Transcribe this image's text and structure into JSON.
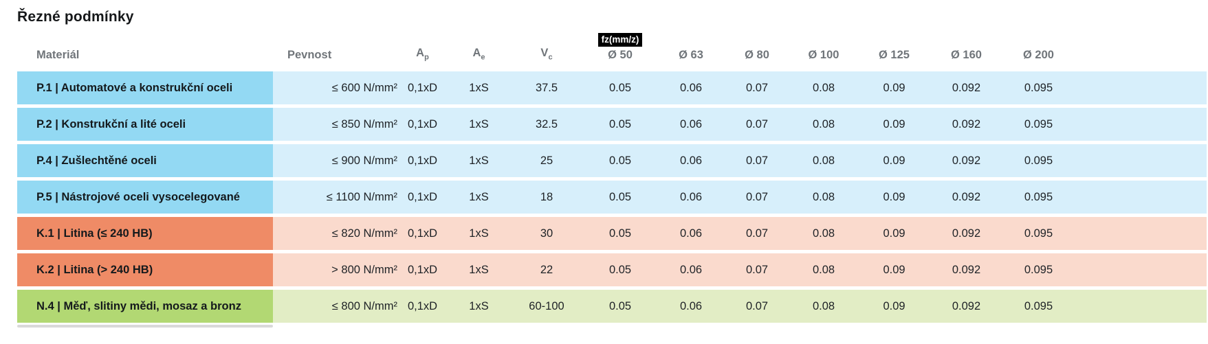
{
  "page": {
    "title": "Řezné podmínky"
  },
  "colors": {
    "title_text": "#16181a",
    "header_text": "#70757a",
    "cell_text": "#1e2226",
    "badge_bg": "#000000",
    "badge_text": "#ffffff",
    "scrollbar_thumb": "#d9d9d9",
    "blue_dark": "#93d9f3",
    "blue_light": "#d7effb",
    "salmon_dark": "#ef8b66",
    "salmon_light": "#fadacd",
    "green_dark": "#b2d873",
    "green_light": "#e2edc5"
  },
  "chart_data": {
    "type": "table",
    "title": "Řezné podmínky",
    "headers": {
      "material": "Materiál",
      "pevnost": "Pevnost",
      "ap": {
        "base": "A",
        "sub": "p"
      },
      "ae": {
        "base": "A",
        "sub": "e"
      },
      "vc": {
        "base": "V",
        "sub": "c"
      },
      "fz_badge": "fz(mm/z)",
      "diameters": [
        "Ø 50",
        "Ø 63",
        "Ø 80",
        "Ø 100",
        "Ø 125",
        "Ø 160",
        "Ø 200"
      ]
    },
    "palette": {
      "blue": {
        "dark": "#93d9f3",
        "light": "#d7effb"
      },
      "salmon": {
        "dark": "#ef8b66",
        "light": "#fadacd"
      },
      "green": {
        "dark": "#b2d873",
        "light": "#e2edc5"
      }
    },
    "rows": [
      {
        "material": "P.1 | Automatové a konstrukční oceli",
        "pevnost": "≤ 600 N/mm²",
        "ap": "0,1xD",
        "ae": "1xS",
        "vc": "37.5",
        "fz": [
          "0.05",
          "0.06",
          "0.07",
          "0.08",
          "0.09",
          "0.092",
          "0.095"
        ],
        "color": "blue"
      },
      {
        "material": "P.2 | Konstrukční a lité oceli",
        "pevnost": "≤ 850 N/mm²",
        "ap": "0,1xD",
        "ae": "1xS",
        "vc": "32.5",
        "fz": [
          "0.05",
          "0.06",
          "0.07",
          "0.08",
          "0.09",
          "0.092",
          "0.095"
        ],
        "color": "blue"
      },
      {
        "material": "P.4 | Zušlechtěné oceli",
        "pevnost": "≤ 900 N/mm²",
        "ap": "0,1xD",
        "ae": "1xS",
        "vc": "25",
        "fz": [
          "0.05",
          "0.06",
          "0.07",
          "0.08",
          "0.09",
          "0.092",
          "0.095"
        ],
        "color": "blue"
      },
      {
        "material": "P.5 | Nástrojové oceli vysocelegované",
        "pevnost": "≤ 1100 N/mm²",
        "ap": "0,1xD",
        "ae": "1xS",
        "vc": "18",
        "fz": [
          "0.05",
          "0.06",
          "0.07",
          "0.08",
          "0.09",
          "0.092",
          "0.095"
        ],
        "color": "blue"
      },
      {
        "material": "K.1 | Litina (≤ 240 HB)",
        "pevnost": "≤ 820 N/mm²",
        "ap": "0,1xD",
        "ae": "1xS",
        "vc": "30",
        "fz": [
          "0.05",
          "0.06",
          "0.07",
          "0.08",
          "0.09",
          "0.092",
          "0.095"
        ],
        "color": "salmon"
      },
      {
        "material": "K.2 | Litina (> 240 HB)",
        "pevnost": "> 800 N/mm²",
        "ap": "0,1xD",
        "ae": "1xS",
        "vc": "22",
        "fz": [
          "0.05",
          "0.06",
          "0.07",
          "0.08",
          "0.09",
          "0.092",
          "0.095"
        ],
        "color": "salmon"
      },
      {
        "material": "N.4 | Měď, slitiny mědi, mosaz a bronz",
        "pevnost": "≤ 800 N/mm²",
        "ap": "0,1xD",
        "ae": "1xS",
        "vc": "60-100",
        "fz": [
          "0.05",
          "0.06",
          "0.07",
          "0.08",
          "0.09",
          "0.092",
          "0.095"
        ],
        "color": "green"
      }
    ]
  }
}
